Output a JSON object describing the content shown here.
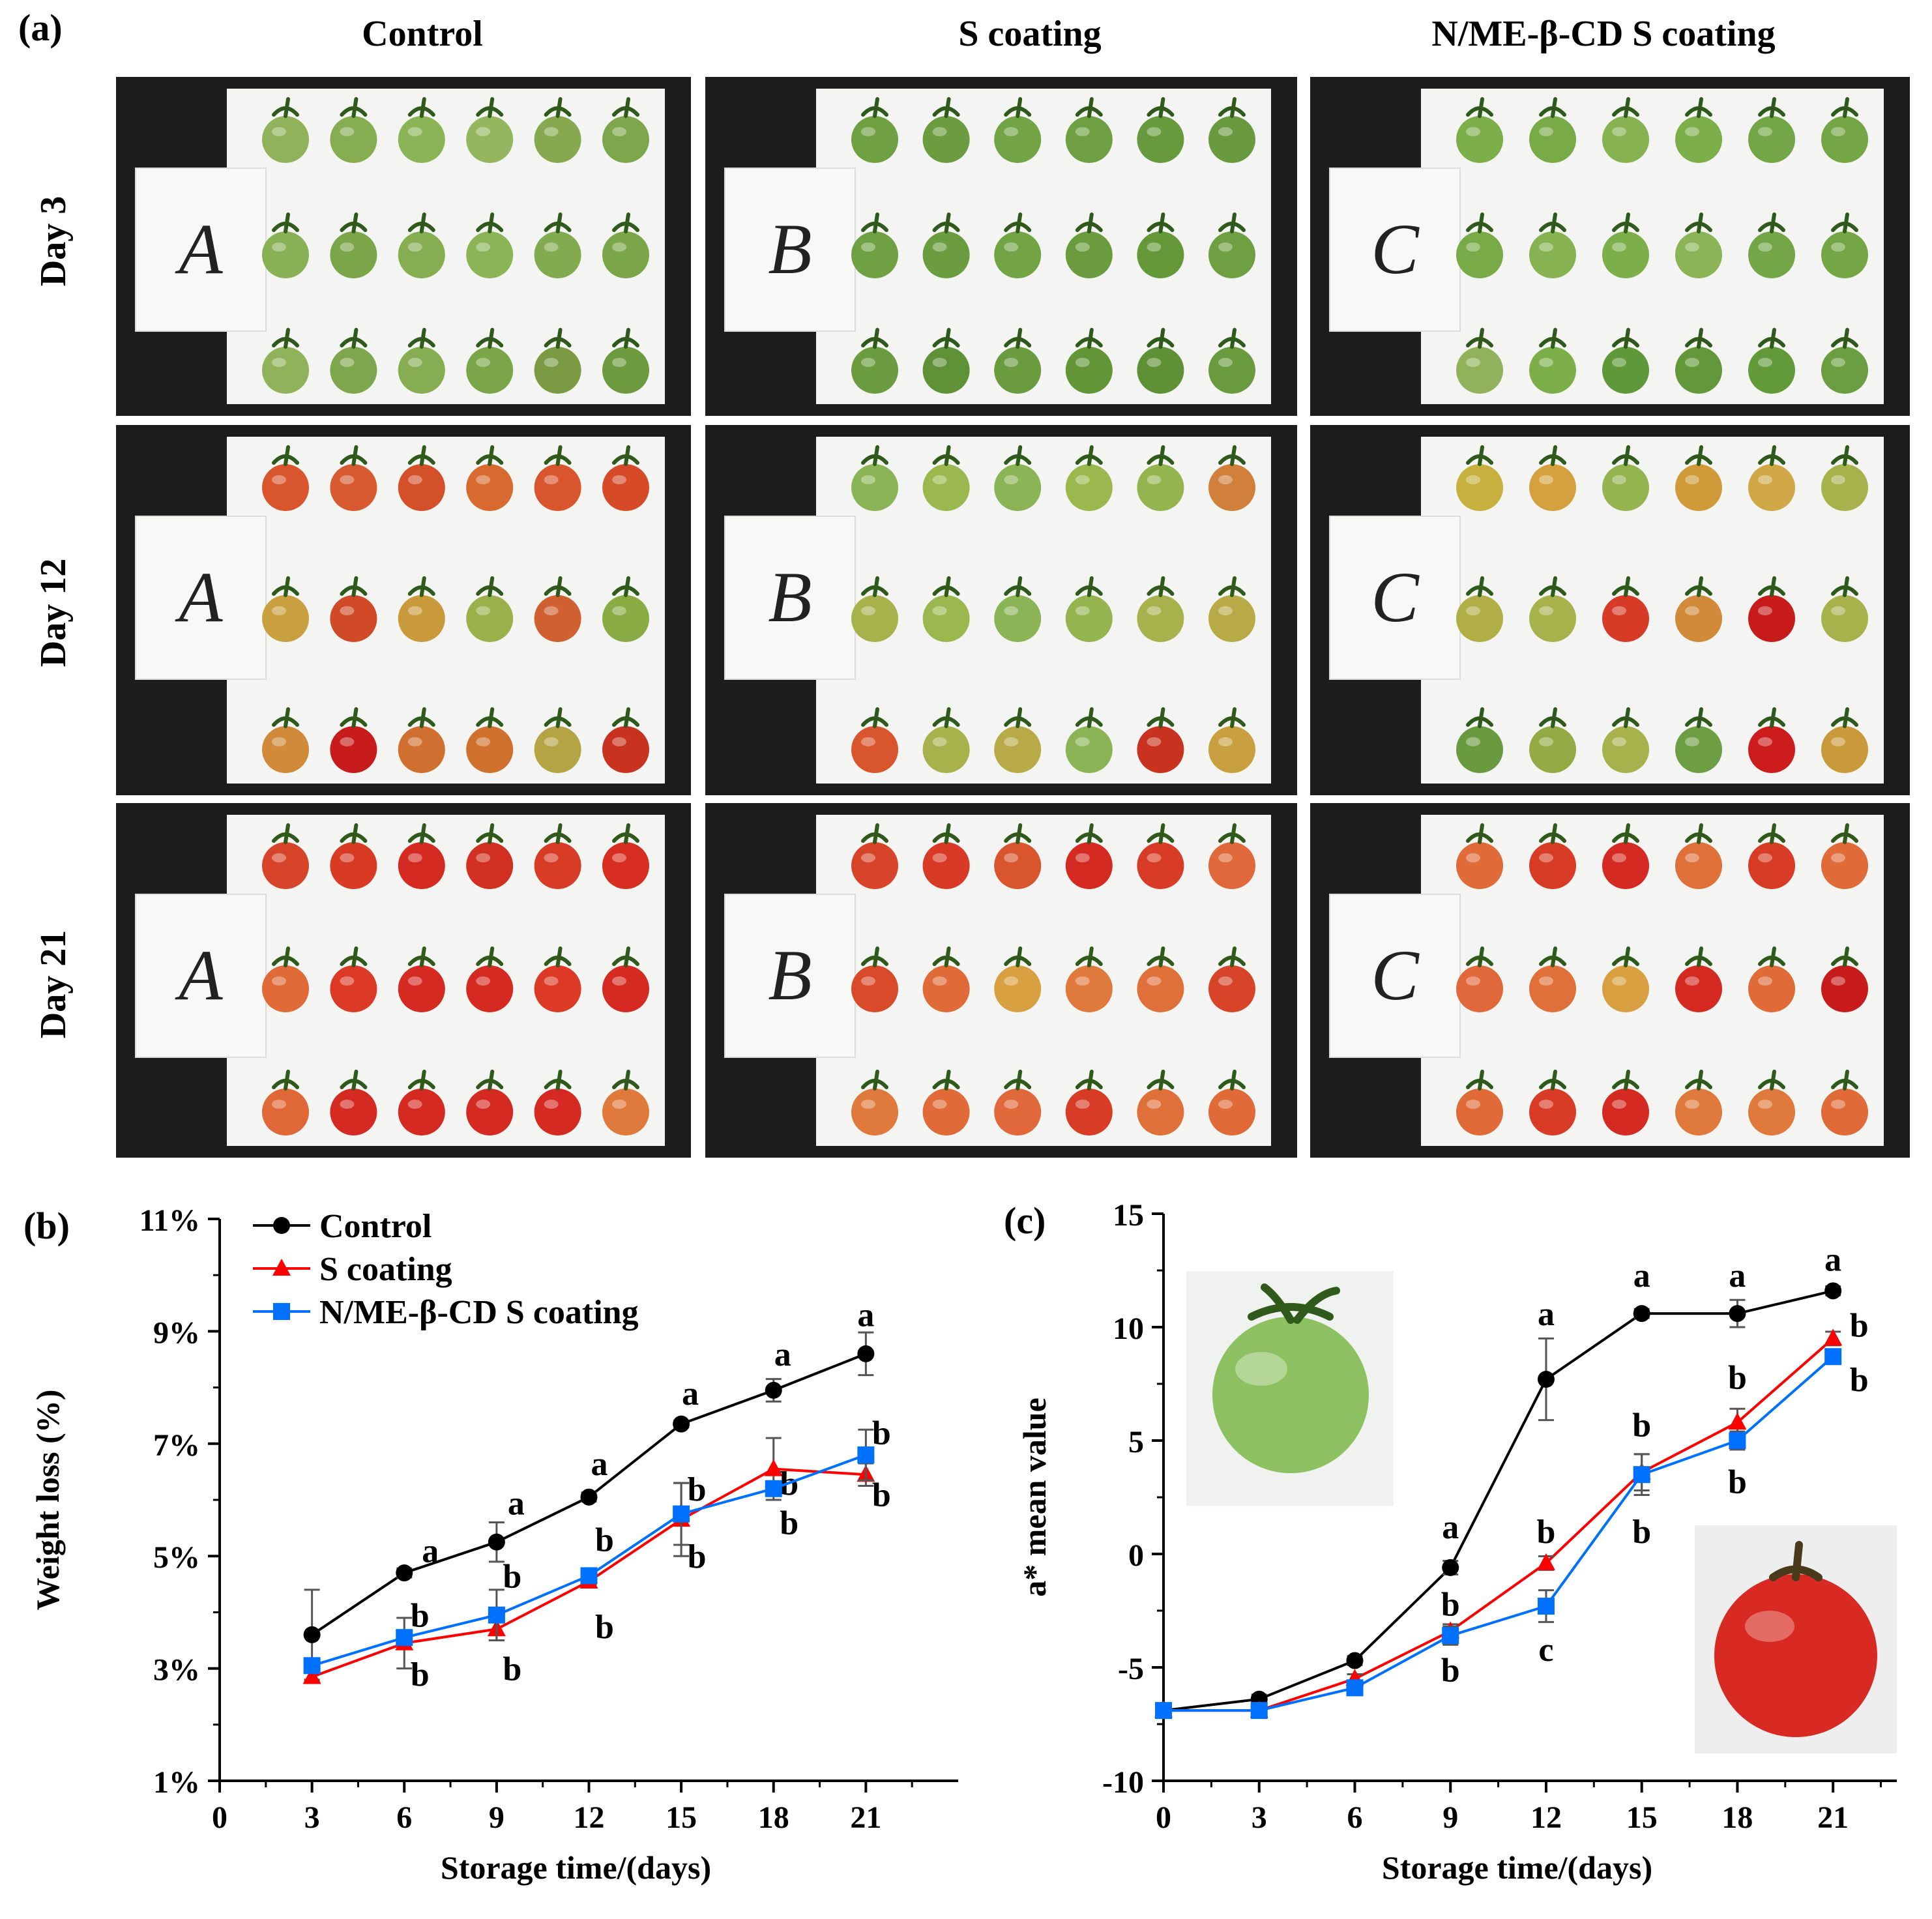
{
  "panel_a": {
    "label": "(a)",
    "columns": [
      "Control",
      "S coating",
      "N/ME-β-CD S coating"
    ],
    "rows": [
      "Day 3",
      "Day 12",
      "Day 21"
    ],
    "tag_letters": [
      "A",
      "B",
      "C"
    ],
    "fruit_colors": [
      [
        [
          "#8fb25a",
          "#86ad52",
          "#8ab456",
          "#93b65e",
          "#86a950",
          "#7ea64c",
          "#88b055",
          "#7aa548",
          "#86ad52",
          "#8ab456",
          "#82aa4e",
          "#7aa548",
          "#8fb25a",
          "#7ea64c",
          "#86ad52",
          "#7aa548",
          "#7a9a44",
          "#6e9a40"
        ],
        [
          "#6fa042",
          "#6b9c40",
          "#72a446",
          "#6e9f43",
          "#679a3c",
          "#6a9a40",
          "#70a044",
          "#6b9c40",
          "#72a446",
          "#6a9b3e",
          "#649838",
          "#6e9f43",
          "#6b9c40",
          "#5f9238",
          "#6a9b3e",
          "#629536",
          "#5e9036",
          "#6a9b3e"
        ],
        [
          "#7cae4a",
          "#78aa48",
          "#86b252",
          "#7cae4a",
          "#72a646",
          "#74a646",
          "#78aa48",
          "#86b252",
          "#7cae4a",
          "#8ab456",
          "#72a646",
          "#74a646",
          "#8fb25a",
          "#7cae4a",
          "#5e9838",
          "#62983a",
          "#629a3a",
          "#6a9e40"
        ]
      ],
      [
        [
          "#d8552e",
          "#d85a30",
          "#d4502a",
          "#d86a30",
          "#d8552e",
          "#d64a28",
          "#c8a040",
          "#d04a28",
          "#c89a3c",
          "#9ab04a",
          "#d06030",
          "#8aaa44",
          "#d08a3a",
          "#c81c1c",
          "#d07030",
          "#d0702e",
          "#b4a444",
          "#c8321e"
        ],
        [
          "#8ab456",
          "#9ab84e",
          "#8ab456",
          "#9ab84e",
          "#94b450",
          "#d0803a",
          "#a8b24c",
          "#9ab84e",
          "#8ab456",
          "#94b450",
          "#a8b24c",
          "#b8aa46",
          "#d8552e",
          "#a8b24c",
          "#b8aa46",
          "#8ab456",
          "#c8321e",
          "#c8a040"
        ],
        [
          "#c8b03e",
          "#d4a040",
          "#94b450",
          "#d09a3a",
          "#d0a848",
          "#a8b24c",
          "#b0ae44",
          "#a8b24c",
          "#d83a28",
          "#d08a3a",
          "#c81c1c",
          "#a8b24c",
          "#6a9a40",
          "#94aa44",
          "#a8b24c",
          "#6e9e44",
          "#cc1c1c",
          "#c89a3c"
        ]
      ],
      [
        [
          "#d8442a",
          "#d83a26",
          "#d42a22",
          "#d23022",
          "#d83c26",
          "#d82e22",
          "#e06a38",
          "#dc3a26",
          "#d42a22",
          "#d42a22",
          "#dc3a26",
          "#d42a22",
          "#e06838",
          "#d42a22",
          "#d42a22",
          "#d42a22",
          "#d42a22",
          "#e07a3c"
        ],
        [
          "#d8442a",
          "#d83a26",
          "#d8552e",
          "#d42a22",
          "#d83c26",
          "#e0683a",
          "#d84a2a",
          "#e06a38",
          "#d8a040",
          "#e07a3c",
          "#e0703a",
          "#d8442a",
          "#e07a3c",
          "#e06a38",
          "#e0683a",
          "#d83c26",
          "#e0703a",
          "#e06a38"
        ],
        [
          "#e06a38",
          "#d83c26",
          "#d42a22",
          "#e0703a",
          "#d83c26",
          "#e06a38",
          "#e0683a",
          "#e0703a",
          "#d8a040",
          "#d42a22",
          "#e06a38",
          "#c81c1c",
          "#e06a38",
          "#d83c26",
          "#d42a22",
          "#e07a3c",
          "#e07a3c",
          "#e06a38"
        ]
      ]
    ]
  },
  "chart_data": [
    {
      "panel_label": "(b)",
      "type": "line",
      "xlabel": "Storage time/(days)",
      "ylabel": "Weight loss (%)",
      "xlim": [
        0,
        24
      ],
      "ylim": [
        1,
        11
      ],
      "xticks": [
        "0",
        "3",
        "6",
        "9",
        "12",
        "15",
        "18",
        "21"
      ],
      "yticks": [
        "1%",
        "3%",
        "5%",
        "7%",
        "9%",
        "11%"
      ],
      "legend_position": "top-left",
      "x": [
        3,
        6,
        9,
        12,
        15,
        18,
        21
      ],
      "series": [
        {
          "name": "Control",
          "color": "#000000",
          "marker": "circle",
          "values": [
            3.6,
            4.7,
            5.25,
            6.05,
            7.35,
            7.95,
            8.6
          ],
          "errors": [
            0.8,
            0.08,
            0.35,
            0.08,
            0.06,
            0.2,
            0.38
          ],
          "letters": [
            "",
            "a",
            "a",
            "a",
            "a",
            "a",
            "a"
          ],
          "letter_y": [
            null,
            5.1,
            5.95,
            6.65,
            7.9,
            8.6,
            9.3
          ]
        },
        {
          "name": "S coating",
          "color": "#ff0000",
          "marker": "triangle",
          "values": [
            2.85,
            3.45,
            3.7,
            4.55,
            5.65,
            6.55,
            6.45
          ],
          "errors": [
            0.08,
            0.45,
            0.2,
            0.06,
            0.65,
            0.55,
            0.2
          ],
          "letters": [
            "",
            "b",
            "b",
            "b",
            "b",
            "b",
            "b"
          ],
          "letter_y": [
            null,
            2.9,
            3.0,
            3.75,
            5.0,
            6.3,
            6.1
          ]
        },
        {
          "name": "N/ME-β-CD S coating",
          "color": "#0070ff",
          "marker": "square",
          "values": [
            3.05,
            3.55,
            3.95,
            4.65,
            5.75,
            6.2,
            6.8
          ],
          "errors": [
            0.08,
            0.1,
            0.45,
            0.08,
            0.55,
            0.1,
            0.45
          ],
          "letters": [
            "",
            "b",
            "b",
            "b",
            "b",
            "b",
            "b"
          ],
          "letter_y": [
            null,
            3.95,
            4.65,
            5.3,
            6.2,
            5.6,
            7.2
          ]
        }
      ]
    },
    {
      "panel_label": "(c)",
      "type": "line",
      "xlabel": "Storage time/(days)",
      "ylabel": "a* mean value",
      "xlim": [
        0,
        23
      ],
      "ylim": [
        -10,
        15
      ],
      "xticks": [
        "0",
        "3",
        "6",
        "9",
        "12",
        "15",
        "18",
        "21"
      ],
      "yticks": [
        "-10",
        "-5",
        "0",
        "5",
        "10",
        "15"
      ],
      "x": [
        0,
        3,
        6,
        9,
        12,
        15,
        18,
        21
      ],
      "series": [
        {
          "name": "Control",
          "color": "#000000",
          "marker": "circle",
          "values": [
            -6.9,
            -6.4,
            -4.7,
            -0.6,
            7.7,
            10.6,
            10.6,
            11.6
          ],
          "errors": [
            0,
            0.2,
            0.2,
            0.3,
            1.8,
            0.2,
            0.6,
            0.2
          ],
          "letters": [
            "",
            "",
            "",
            "a",
            "a",
            "a",
            "a",
            "a"
          ],
          "letter_y": [
            null,
            null,
            null,
            1.2,
            10.6,
            12.3,
            12.3,
            13.0
          ]
        },
        {
          "name": "S coating",
          "color": "#ff0000",
          "marker": "triangle",
          "values": [
            -6.9,
            -6.9,
            -5.5,
            -3.4,
            -0.4,
            3.6,
            5.8,
            9.5
          ],
          "errors": [
            0,
            0.2,
            0.2,
            0.3,
            0.3,
            0.8,
            0.6,
            0.3
          ],
          "letters": [
            "",
            "",
            "",
            "b",
            "b",
            "b",
            "b",
            "b"
          ],
          "letter_y": [
            null,
            null,
            null,
            -2.2,
            1.0,
            5.7,
            7.8,
            10.1
          ]
        },
        {
          "name": "N/ME-β-CD S coating",
          "color": "#0070ff",
          "marker": "square",
          "values": [
            -6.9,
            -6.9,
            -5.9,
            -3.6,
            -2.3,
            3.5,
            5.0,
            8.7
          ],
          "errors": [
            0,
            0.2,
            0.2,
            0.4,
            0.7,
            0.9,
            0.4,
            0.3
          ],
          "letters": [
            "",
            "",
            "",
            "b",
            "c",
            "b",
            "b",
            "b"
          ],
          "letter_y": [
            null,
            null,
            null,
            -5.1,
            -4.2,
            1.0,
            3.2,
            7.7
          ]
        }
      ]
    }
  ]
}
